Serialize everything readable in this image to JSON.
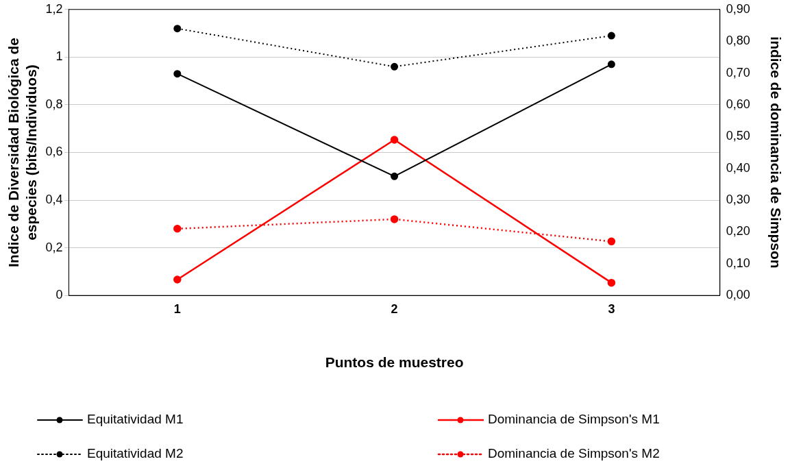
{
  "chart_data": {
    "type": "line",
    "xlabel": "Puntos de muestreo",
    "ylabel": "Indice de Diversidad Biológica de especies (bits/Individuos)",
    "y2label": "indice de dominancia de Simpson",
    "categories": [
      "1",
      "2",
      "3"
    ],
    "ylim": [
      0,
      1.2
    ],
    "yticks": [
      0,
      {
        "value": 0.2,
        "label": "0,2"
      },
      {
        "value": 0.4,
        "label": "0,4"
      },
      {
        "value": 0.6,
        "label": "0,6"
      },
      {
        "value": 0.8,
        "label": "0,8"
      },
      1,
      {
        "value": 1.2,
        "label": "1,2"
      }
    ],
    "y2lim": [
      0,
      0.9
    ],
    "y2ticks": [
      {
        "value": 0,
        "label": "0,00"
      },
      {
        "value": 0.1,
        "label": "0,10"
      },
      {
        "value": 0.2,
        "label": "0,20"
      },
      {
        "value": 0.3,
        "label": "0,30"
      },
      {
        "value": 0.4,
        "label": "0,40"
      },
      {
        "value": 0.5,
        "label": "0,50"
      },
      {
        "value": 0.6,
        "label": "0,60"
      },
      {
        "value": 0.7,
        "label": "0,70"
      },
      {
        "value": 0.8,
        "label": "0,80"
      },
      {
        "value": 0.9,
        "label": "0,90"
      }
    ],
    "grid": "y",
    "legend": "bottom",
    "marker": "circle",
    "series": [
      {
        "name": "Equitatividad M1",
        "color": "#000000",
        "values": [
          0.93,
          0.5,
          0.97
        ],
        "line_style": "solid"
      },
      {
        "name": "Dominancia de Simpson's M1",
        "color": "#ff0000",
        "values": [
          0.05,
          0.49,
          0.04
        ],
        "axis": "y2",
        "line_style": "solid"
      },
      {
        "name": "Equitatividad M2",
        "color": "#000000",
        "values": [
          1.12,
          0.96,
          1.09
        ],
        "line_style": "dotted"
      },
      {
        "name": "Dominancia de Simpson's M2",
        "color": "#ff0000",
        "values": [
          0.21,
          0.24,
          0.17
        ],
        "axis": "y2",
        "line_style": "dotted"
      }
    ]
  }
}
